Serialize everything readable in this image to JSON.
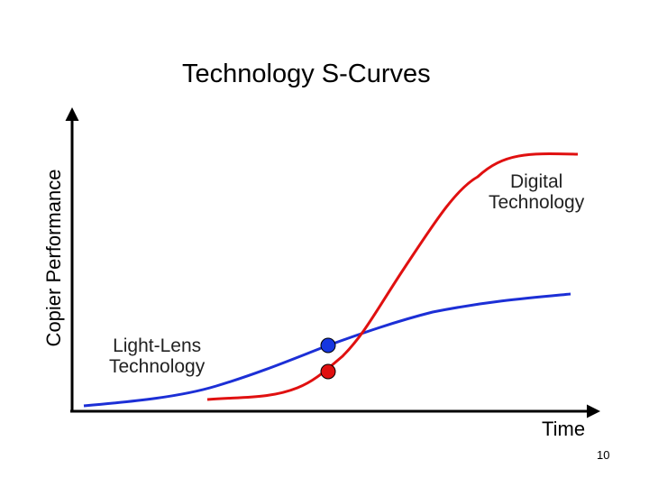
{
  "title": "Technology S-Curves",
  "y_axis_label": "Copier Performance",
  "x_axis_label": "Time",
  "curves": {
    "digital": {
      "line1": "Digital",
      "line2": "Technology",
      "color": "#e01010"
    },
    "light_lens": {
      "line1": "Light-Lens",
      "line2": "Technology",
      "color": "#1c2fd6"
    }
  },
  "markers": {
    "blue": "#1636e0",
    "red": "#e01010"
  },
  "page_number": "10"
}
